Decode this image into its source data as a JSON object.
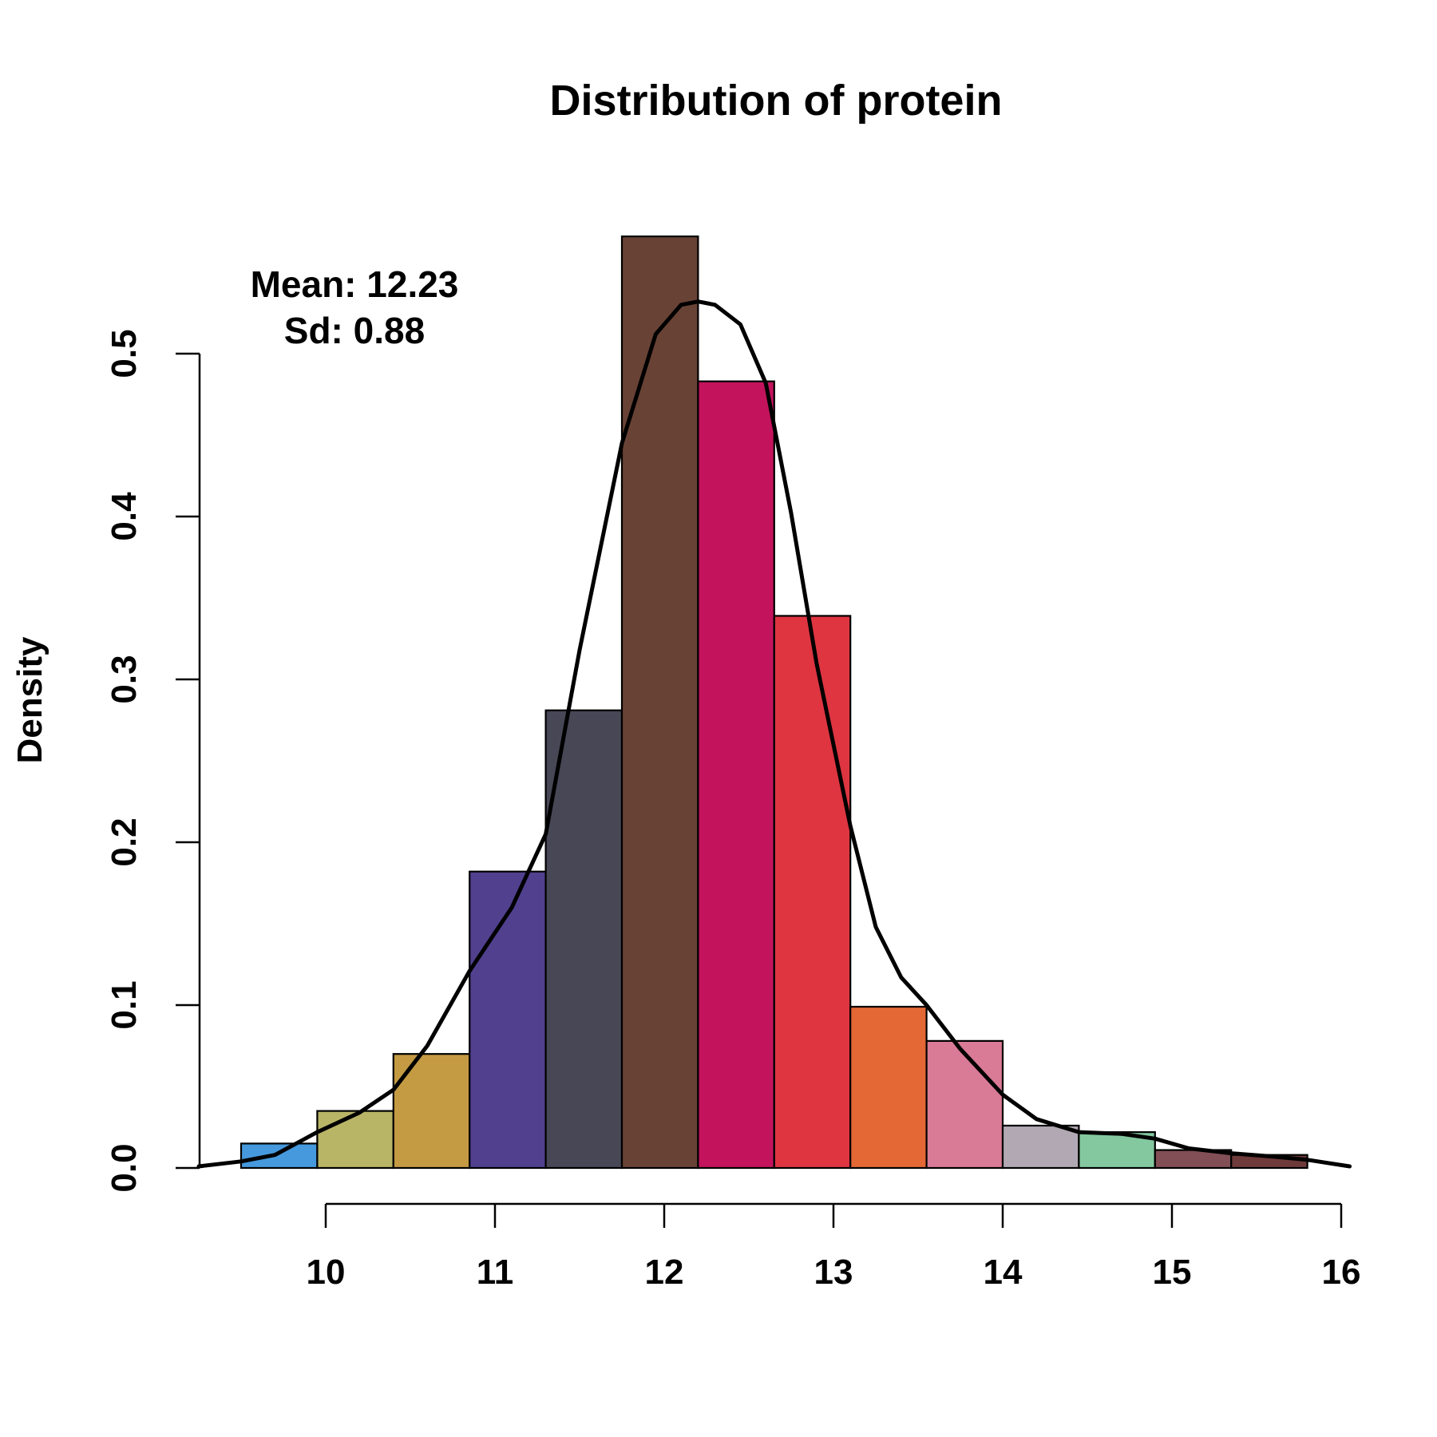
{
  "chart_data": {
    "type": "histogram",
    "title": "Distribution of protein",
    "xlabel": "",
    "ylabel": "Density",
    "xlim": [
      9.25,
      16.05
    ],
    "ylim": [
      0,
      0.5
    ],
    "x_ticks": [
      10,
      11,
      12,
      13,
      14,
      15,
      16
    ],
    "y_ticks": [
      0.0,
      0.1,
      0.2,
      0.3,
      0.4,
      0.5
    ],
    "y_tick_labels": [
      "0.0",
      "0.1",
      "0.2",
      "0.3",
      "0.4",
      "0.5"
    ],
    "grid": false,
    "annotations": {
      "mean": "Mean: 12.23",
      "sd": "Sd: 0.88"
    },
    "bins": [
      {
        "x0": 9.5,
        "x1": 9.95,
        "density": 0.015,
        "color": "#4699DD"
      },
      {
        "x0": 9.95,
        "x1": 10.4,
        "density": 0.035,
        "color": "#B9B567"
      },
      {
        "x0": 10.4,
        "x1": 10.85,
        "density": 0.07,
        "color": "#C49A43"
      },
      {
        "x0": 10.85,
        "x1": 11.3,
        "density": 0.182,
        "color": "#51408E"
      },
      {
        "x0": 11.3,
        "x1": 11.75,
        "density": 0.281,
        "color": "#474756"
      },
      {
        "x0": 11.75,
        "x1": 12.2,
        "density": 0.572,
        "color": "#694236"
      },
      {
        "x0": 12.2,
        "x1": 12.65,
        "density": 0.483,
        "color": "#C3135C"
      },
      {
        "x0": 12.65,
        "x1": 13.1,
        "density": 0.339,
        "color": "#DE3541"
      },
      {
        "x0": 13.1,
        "x1": 13.55,
        "density": 0.099,
        "color": "#E36835"
      },
      {
        "x0": 13.55,
        "x1": 14.0,
        "density": 0.078,
        "color": "#D97A96"
      },
      {
        "x0": 14.0,
        "x1": 14.45,
        "density": 0.026,
        "color": "#B2A8B4"
      },
      {
        "x0": 14.45,
        "x1": 14.9,
        "density": 0.022,
        "color": "#84C8A0"
      },
      {
        "x0": 14.9,
        "x1": 15.35,
        "density": 0.011,
        "color": "#824F56"
      },
      {
        "x0": 15.35,
        "x1": 15.8,
        "density": 0.008,
        "color": "#6E3A3A"
      }
    ],
    "density_curve": {
      "x": [
        9.25,
        9.5,
        9.7,
        9.95,
        10.2,
        10.4,
        10.6,
        10.85,
        11.1,
        11.3,
        11.5,
        11.75,
        11.95,
        12.1,
        12.2,
        12.3,
        12.45,
        12.6,
        12.75,
        12.9,
        13.1,
        13.25,
        13.4,
        13.55,
        13.75,
        14.0,
        14.2,
        14.45,
        14.7,
        14.9,
        15.1,
        15.35,
        15.6,
        15.8,
        16.05
      ],
      "y": [
        0.001,
        0.004,
        0.008,
        0.022,
        0.034,
        0.048,
        0.075,
        0.121,
        0.16,
        0.205,
        0.318,
        0.445,
        0.512,
        0.53,
        0.532,
        0.53,
        0.518,
        0.482,
        0.402,
        0.31,
        0.21,
        0.148,
        0.117,
        0.1,
        0.073,
        0.045,
        0.03,
        0.022,
        0.021,
        0.018,
        0.012,
        0.009,
        0.007,
        0.005,
        0.001
      ]
    }
  }
}
